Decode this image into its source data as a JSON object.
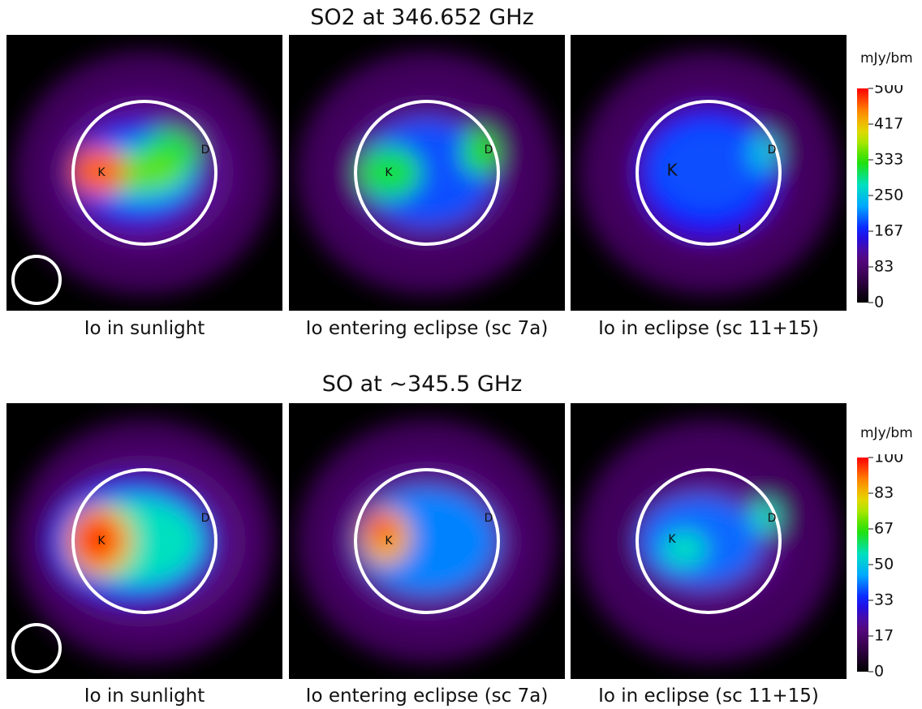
{
  "rows": [
    {
      "title": "SO2 at 346.652 GHz",
      "colorbar": {
        "unit": "mJy/bm",
        "ticks": [
          "500",
          "417",
          "333",
          "250",
          "167",
          "83",
          "0"
        ],
        "max": 500
      },
      "panels": [
        {
          "caption": "Io in sunlight",
          "markers": [
            {
              "label": "K",
              "big": false
            },
            {
              "label": "D",
              "big": false
            }
          ],
          "beam": true,
          "blobs": [
            {
              "dx": 0,
              "dy": 0,
              "rx": 110,
              "ry": 95,
              "level": 0.22
            },
            {
              "dx": -8,
              "dy": 0,
              "rx": 78,
              "ry": 62,
              "level": 0.35
            },
            {
              "dx": -2,
              "dy": 0,
              "rx": 62,
              "ry": 38,
              "level": 0.5
            },
            {
              "dx": 30,
              "dy": -22,
              "rx": 35,
              "ry": 30,
              "level": 0.62
            },
            {
              "dx": -5,
              "dy": 0,
              "rx": 55,
              "ry": 22,
              "level": 0.7
            },
            {
              "dx": -55,
              "dy": -2,
              "rx": 32,
              "ry": 30,
              "level": 0.92
            }
          ]
        },
        {
          "caption": "Io entering eclipse (sc 7a)",
          "markers": [
            {
              "label": "K",
              "big": false
            },
            {
              "label": "D",
              "big": false
            }
          ],
          "beam": false,
          "blobs": [
            {
              "dx": 0,
              "dy": 0,
              "rx": 105,
              "ry": 92,
              "level": 0.2
            },
            {
              "dx": 0,
              "dy": 0,
              "rx": 82,
              "ry": 66,
              "level": 0.38
            },
            {
              "dx": -45,
              "dy": 0,
              "rx": 38,
              "ry": 32,
              "level": 0.62
            },
            {
              "dx": 65,
              "dy": -25,
              "rx": 22,
              "ry": 28,
              "level": 0.66
            }
          ]
        },
        {
          "caption": "Io in eclipse (sc 11+15)",
          "markers": [
            {
              "label": "K",
              "big": true
            },
            {
              "label": "D",
              "big": false
            },
            {
              "label": "L",
              "big": false
            }
          ],
          "beam": false,
          "blobs": [
            {
              "dx": 0,
              "dy": 0,
              "rx": 100,
              "ry": 95,
              "level": 0.2
            },
            {
              "dx": 0,
              "dy": 0,
              "rx": 85,
              "ry": 78,
              "level": 0.33
            },
            {
              "dx": 0,
              "dy": -5,
              "rx": 70,
              "ry": 55,
              "level": 0.38
            },
            {
              "dx": 68,
              "dy": -25,
              "rx": 18,
              "ry": 24,
              "level": 0.5
            }
          ]
        }
      ]
    },
    {
      "title": "SO at ~345.5 GHz",
      "colorbar": {
        "unit": "mJy/bm",
        "ticks": [
          "100",
          "83",
          "67",
          "50",
          "33",
          "17",
          "0"
        ],
        "max": 100
      },
      "panels": [
        {
          "caption": "Io in sunlight",
          "markers": [
            {
              "label": "K",
              "big": false
            },
            {
              "label": "D",
              "big": false
            }
          ],
          "beam": true,
          "blobs": [
            {
              "dx": 0,
              "dy": 0,
              "rx": 125,
              "ry": 105,
              "level": 0.2
            },
            {
              "dx": -15,
              "dy": 0,
              "rx": 100,
              "ry": 75,
              "level": 0.35
            },
            {
              "dx": -10,
              "dy": 0,
              "rx": 80,
              "ry": 55,
              "level": 0.55
            },
            {
              "dx": -55,
              "dy": 0,
              "rx": 42,
              "ry": 45,
              "level": 0.82
            },
            {
              "dx": -58,
              "dy": -2,
              "rx": 30,
              "ry": 32,
              "level": 0.95
            }
          ]
        },
        {
          "caption": "Io entering eclipse (sc 7a)",
          "markers": [
            {
              "label": "K",
              "big": false
            },
            {
              "label": "D",
              "big": false
            }
          ],
          "beam": false,
          "blobs": [
            {
              "dx": 0,
              "dy": 0,
              "rx": 110,
              "ry": 95,
              "level": 0.22
            },
            {
              "dx": 0,
              "dy": 0,
              "rx": 85,
              "ry": 65,
              "level": 0.42
            },
            {
              "dx": -50,
              "dy": -5,
              "rx": 30,
              "ry": 35,
              "level": 0.85
            },
            {
              "dx": -55,
              "dy": -15,
              "rx": 16,
              "ry": 18,
              "level": 0.95
            }
          ]
        },
        {
          "caption": "Io in eclipse (sc 11+15)",
          "markers": [
            {
              "label": "K",
              "big": false
            },
            {
              "label": "D",
              "big": false
            }
          ],
          "beam": false,
          "blobs": [
            {
              "dx": 0,
              "dy": 0,
              "rx": 95,
              "ry": 80,
              "level": 0.22
            },
            {
              "dx": -10,
              "dy": 0,
              "rx": 75,
              "ry": 55,
              "level": 0.4
            },
            {
              "dx": -30,
              "dy": 10,
              "rx": 28,
              "ry": 22,
              "level": 0.55
            },
            {
              "dx": 70,
              "dy": -30,
              "rx": 18,
              "ry": 20,
              "level": 0.55
            }
          ]
        }
      ]
    }
  ]
}
